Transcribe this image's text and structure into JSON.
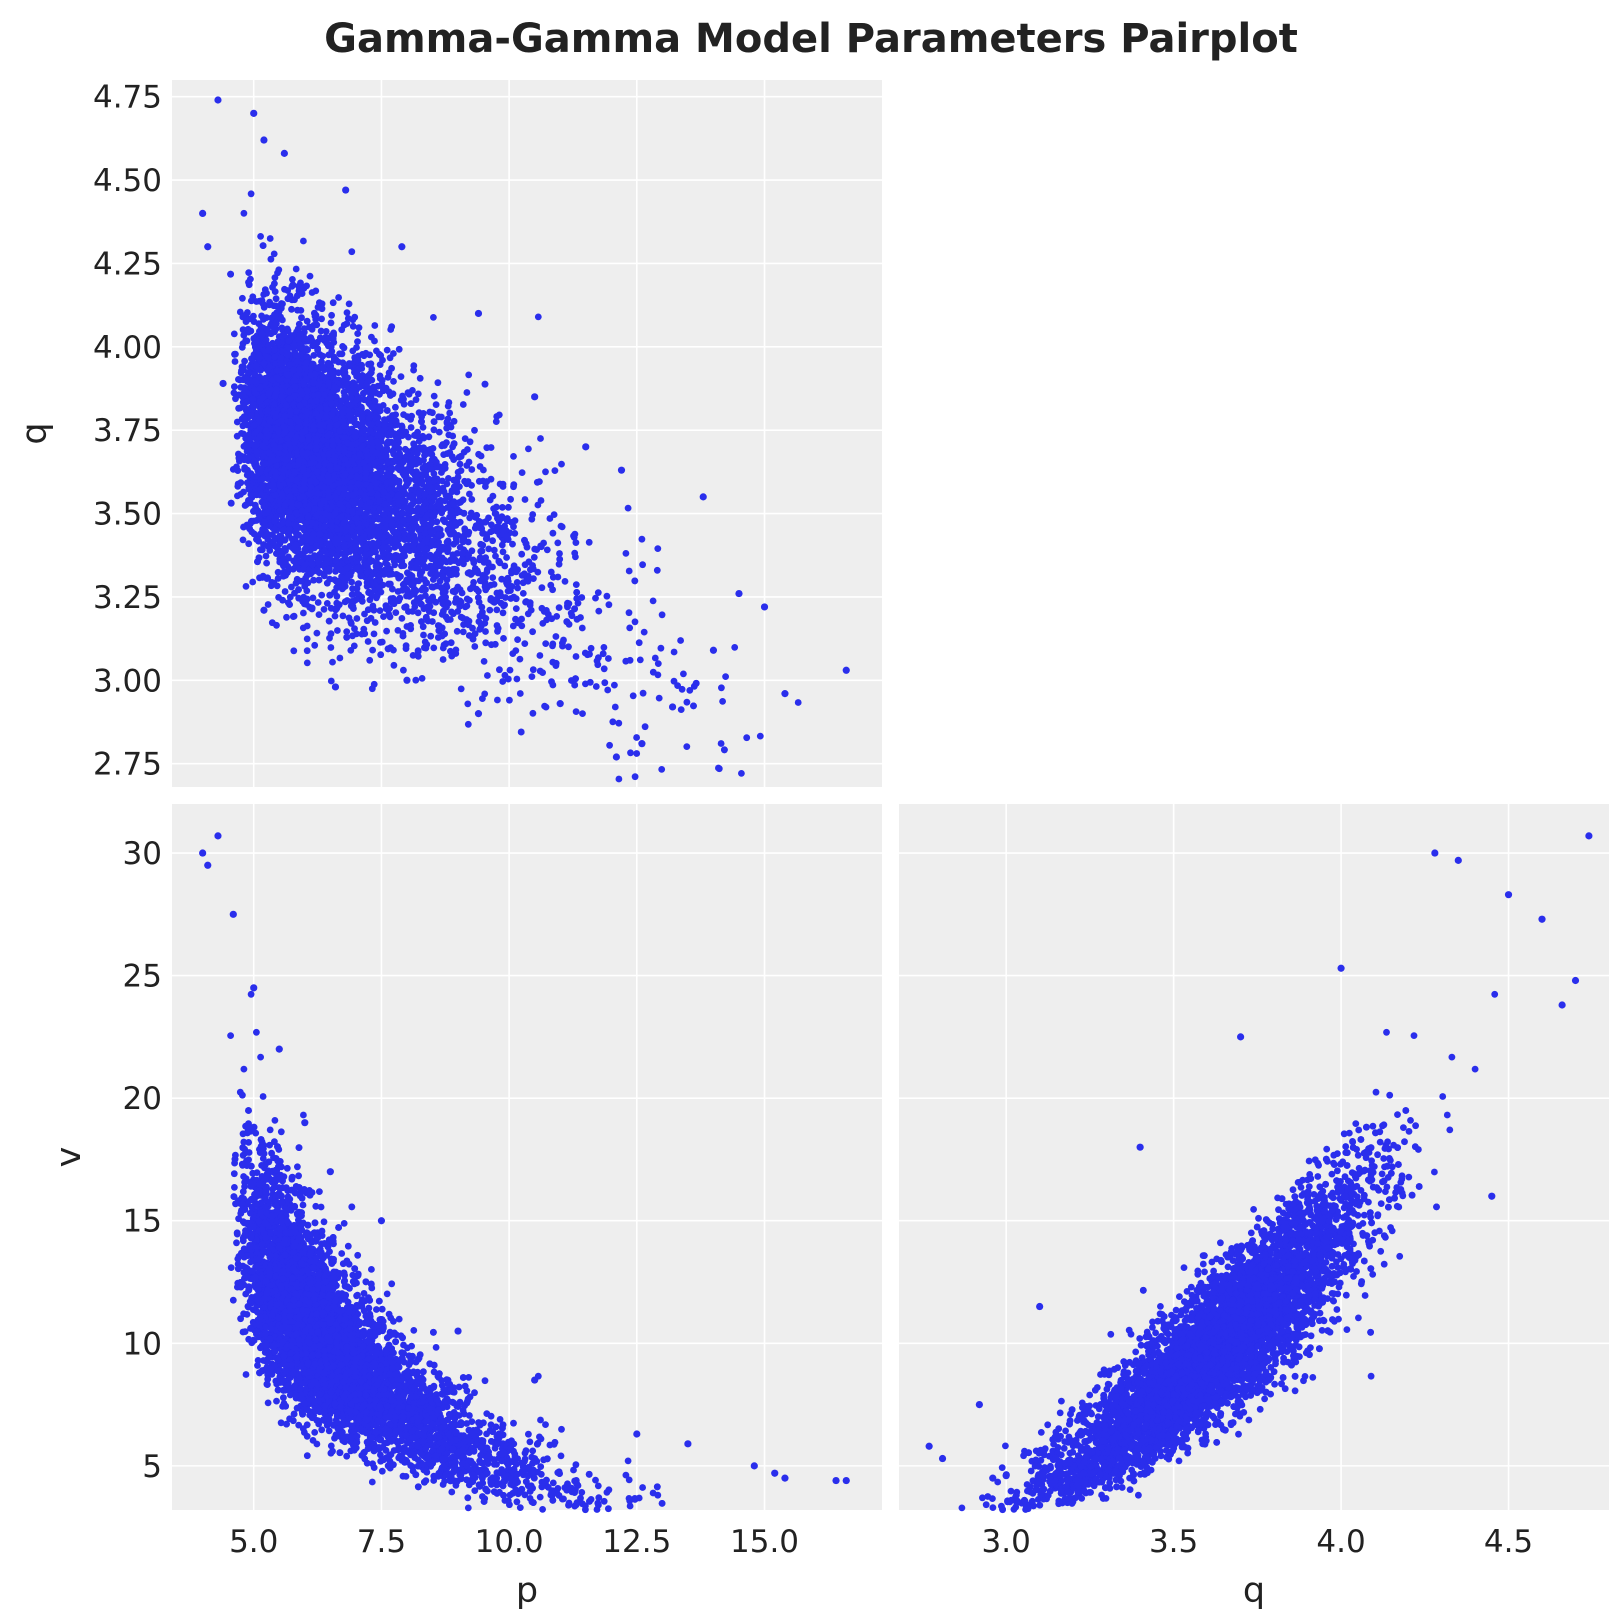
{
  "title": "Gamma-Gamma Model Parameters Pairplot",
  "colors": {
    "points": "#2a2eec",
    "panel_bg": "#eeeeee",
    "grid": "#ffffff",
    "text": "#222222"
  },
  "chart_data": [
    {
      "type": "scatter",
      "panel": "top-left",
      "xlabel": "",
      "ylabel": "q",
      "xlim": [
        3.4,
        17.3
      ],
      "ylim": [
        2.68,
        4.8
      ],
      "xticks": [
        5.0,
        7.5,
        10.0,
        12.5,
        15.0
      ],
      "xtick_labels": [],
      "yticks": [
        2.75,
        3.0,
        3.25,
        3.5,
        3.75,
        4.0,
        4.25,
        4.5,
        4.75
      ],
      "ytick_labels": [
        "2.75",
        "3.00",
        "3.25",
        "3.50",
        "3.75",
        "4.00",
        "4.25",
        "4.50",
        "4.75"
      ],
      "grid": true,
      "series": [
        {
          "x": [
            4.3,
            5.0,
            5.2,
            4.0,
            4.1,
            5.6,
            6.8,
            7.9,
            9.4,
            10.5,
            11.5,
            12.2,
            13.8,
            14.5,
            15.0,
            15.4,
            16.6,
            12.1,
            12.6,
            9.4,
            8.0,
            6.6,
            5.2,
            4.4,
            11.0,
            13.2,
            14.0
          ],
          "y": [
            4.74,
            4.7,
            4.62,
            4.4,
            4.3,
            4.58,
            4.47,
            4.3,
            4.1,
            3.85,
            3.7,
            3.63,
            3.55,
            3.26,
            3.22,
            2.96,
            3.03,
            2.77,
            2.81,
            2.9,
            3.0,
            2.98,
            3.21,
            3.89,
            2.93,
            2.92,
            3.09
          ]
        }
      ]
    },
    {
      "type": "scatter",
      "panel": "bottom-left",
      "xlabel": "p",
      "ylabel": "v",
      "xlim": [
        3.4,
        17.3
      ],
      "ylim": [
        3.2,
        32.0
      ],
      "xticks": [
        5.0,
        7.5,
        10.0,
        12.5,
        15.0
      ],
      "xtick_labels": [
        "5.0",
        "7.5",
        "10.0",
        "12.5",
        "15.0"
      ],
      "yticks": [
        5,
        10,
        15,
        20,
        25,
        30
      ],
      "ytick_labels": [
        "5",
        "10",
        "15",
        "20",
        "25",
        "30"
      ],
      "grid": true,
      "series": [
        {
          "x": [
            4.0,
            4.1,
            4.3,
            4.6,
            5.0,
            5.5,
            6.0,
            6.5,
            7.5,
            9.0,
            10.5,
            12.5,
            13.5,
            14.8,
            15.2,
            15.4,
            16.4,
            16.6
          ],
          "y": [
            30.0,
            29.5,
            30.7,
            27.5,
            24.5,
            22.0,
            19.0,
            17.0,
            15.0,
            10.5,
            8.5,
            6.3,
            5.9,
            5.0,
            4.7,
            4.5,
            4.4,
            4.4
          ]
        }
      ]
    },
    {
      "type": "scatter",
      "panel": "bottom-right",
      "xlabel": "q",
      "ylabel": "",
      "xlim": [
        2.68,
        4.8
      ],
      "ylim": [
        3.2,
        32.0
      ],
      "xticks": [
        3.0,
        3.5,
        4.0,
        4.5
      ],
      "xtick_labels": [
        "3.0",
        "3.5",
        "4.0",
        "4.5"
      ],
      "yticks": [
        5,
        10,
        15,
        20,
        25,
        30
      ],
      "ytick_labels": [],
      "grid": true,
      "series": [
        {
          "x": [
            2.77,
            2.81,
            2.92,
            2.96,
            3.0,
            3.1,
            3.2,
            3.4,
            3.7,
            4.0,
            4.28,
            4.35,
            4.5,
            4.6,
            4.66,
            4.7,
            4.74,
            4.45
          ],
          "y": [
            5.8,
            5.3,
            7.5,
            4.5,
            4.6,
            11.5,
            6.0,
            18.0,
            22.5,
            25.3,
            30.0,
            29.7,
            28.3,
            27.3,
            23.8,
            24.8,
            30.7,
            16.0
          ]
        }
      ]
    }
  ]
}
